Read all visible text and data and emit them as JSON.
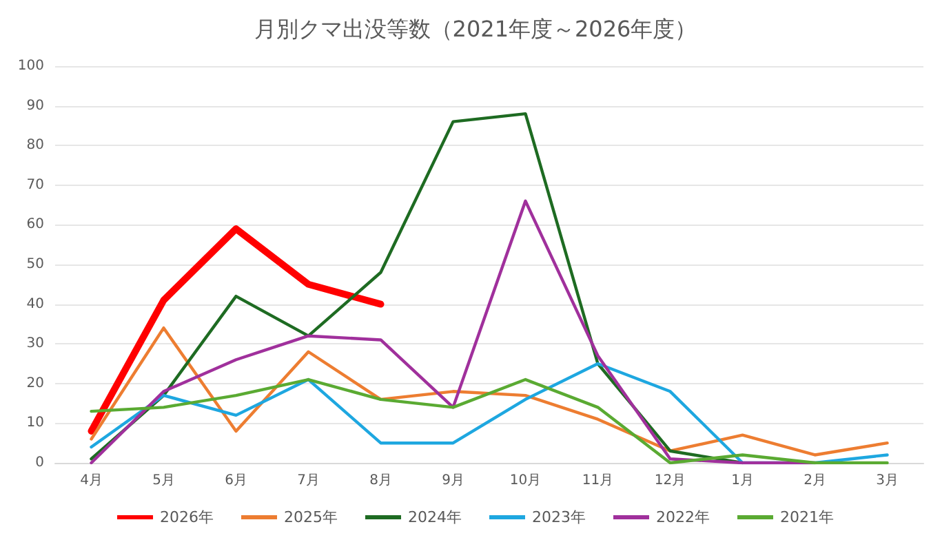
{
  "chart_data": {
    "type": "line",
    "title": "月別クマ出没等数（2021年度～2026年度）",
    "categories": [
      "4月",
      "5月",
      "6月",
      "7月",
      "8月",
      "9月",
      "10月",
      "11月",
      "12月",
      "1月",
      "2月",
      "3月"
    ],
    "ylim": [
      0,
      100
    ],
    "yticks": [
      0,
      10,
      20,
      30,
      40,
      50,
      60,
      70,
      80,
      90,
      100
    ],
    "grid": "y",
    "legend": "bottom",
    "marker": "none",
    "line_style": "solid",
    "series": [
      {
        "name": "2026年",
        "color": "#ff0000",
        "values": [
          8,
          41,
          59,
          45,
          40,
          null,
          null,
          null,
          null,
          null,
          null,
          null
        ]
      },
      {
        "name": "2025年",
        "color": "#ed7d31",
        "values": [
          6,
          34,
          8,
          28,
          16,
          18,
          17,
          11,
          3,
          7,
          2,
          5
        ]
      },
      {
        "name": "2024年",
        "color": "#1e6b22",
        "values": [
          1,
          17,
          42,
          32,
          48,
          86,
          88,
          25,
          3,
          0,
          null,
          null
        ]
      },
      {
        "name": "2023年",
        "color": "#1ea7e0",
        "values": [
          4,
          17,
          12,
          21,
          5,
          5,
          16,
          25,
          18,
          0,
          0,
          2
        ]
      },
      {
        "name": "2022年",
        "color": "#a0309c",
        "values": [
          0,
          18,
          26,
          32,
          31,
          14,
          66,
          27,
          1,
          0,
          0,
          null
        ]
      },
      {
        "name": "2021年",
        "color": "#5aaa32",
        "values": [
          13,
          14,
          17,
          21,
          16,
          14,
          21,
          14,
          0,
          2,
          0,
          0
        ]
      }
    ]
  }
}
